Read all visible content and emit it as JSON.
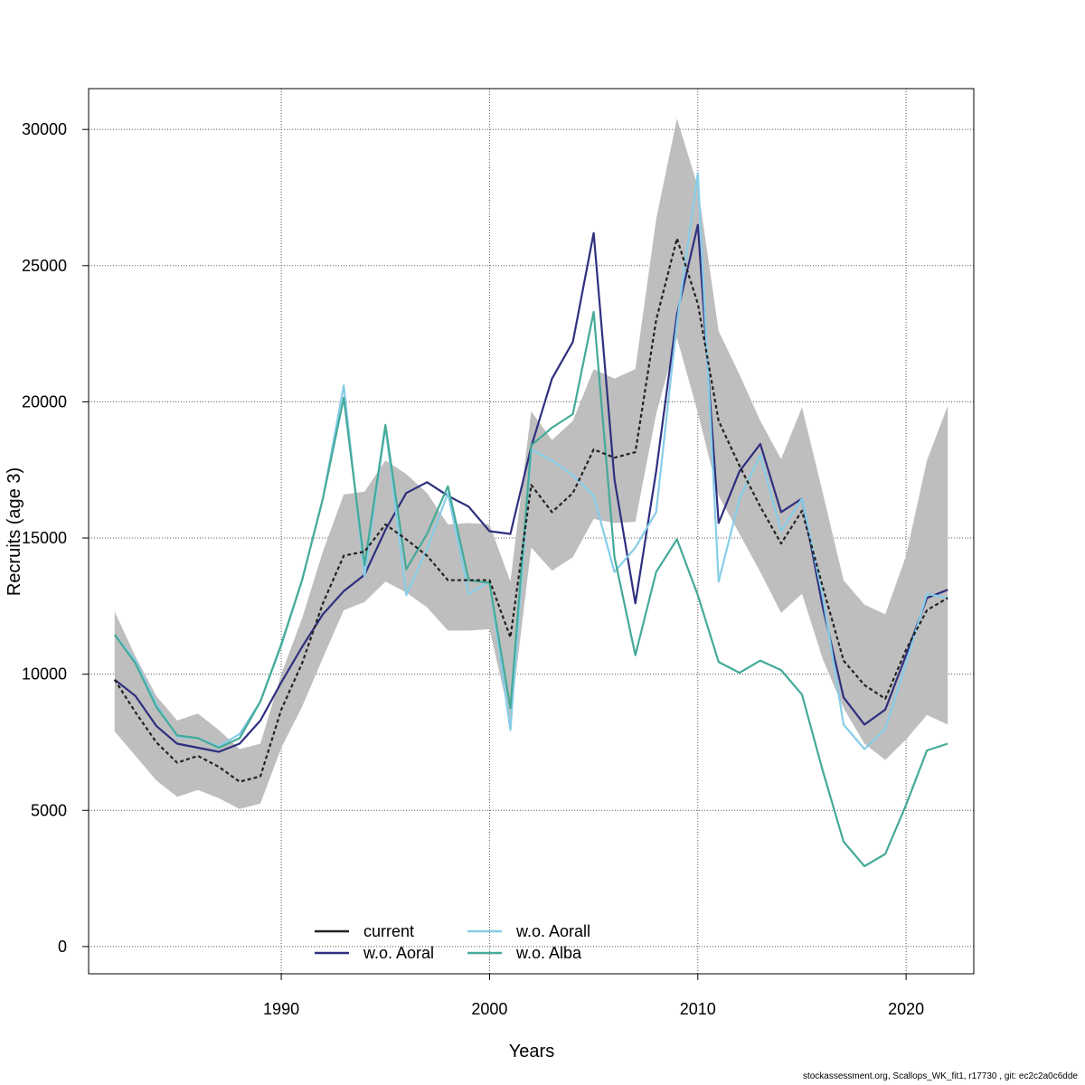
{
  "chart_data": {
    "type": "line",
    "xlabel": "Years",
    "ylabel": "Recruits (age 3)",
    "xlim": [
      1982,
      2022
    ],
    "ylim": [
      -1000,
      31500
    ],
    "x_ticks": [
      1990,
      2000,
      2010,
      2020
    ],
    "y_ticks": [
      0,
      5000,
      10000,
      15000,
      20000,
      25000,
      30000
    ],
    "grid": true,
    "legend_position": "bottom-center",
    "years": [
      1982,
      1983,
      1984,
      1985,
      1986,
      1987,
      1988,
      1989,
      1990,
      1991,
      1992,
      1993,
      1994,
      1995,
      1996,
      1997,
      1998,
      1999,
      2000,
      2001,
      2002,
      2003,
      2004,
      2005,
      2006,
      2007,
      2008,
      2009,
      2010,
      2011,
      2012,
      2013,
      2014,
      2015,
      2016,
      2017,
      2018,
      2019,
      2020,
      2021,
      2022
    ],
    "confidence_band": {
      "lower": [
        7900,
        7000,
        6100,
        5500,
        5750,
        5450,
        5050,
        5250,
        7300,
        8800,
        10600,
        12350,
        12650,
        13400,
        13000,
        12450,
        11600,
        11600,
        11650,
        8300,
        14650,
        13800,
        14300,
        15700,
        15550,
        15600,
        19550,
        22350,
        19600,
        16550,
        15150,
        13750,
        12250,
        12950,
        10550,
        8750,
        7450,
        6850,
        7600,
        8500,
        8150
      ],
      "upper": [
        12300,
        10650,
        9200,
        8300,
        8550,
        7950,
        7250,
        7450,
        10000,
        12050,
        14500,
        16600,
        16700,
        17850,
        17350,
        16650,
        15500,
        15550,
        15500,
        13400,
        19650,
        18600,
        19300,
        21200,
        20850,
        21200,
        26700,
        30400,
        27900,
        22600,
        21000,
        19300,
        17900,
        19800,
        16650,
        13450,
        12550,
        12200,
        14350,
        17850,
        19850
      ]
    },
    "series": [
      {
        "name": "current",
        "color": "#222222",
        "values": [
          9800,
          8600,
          7500,
          6750,
          7000,
          6600,
          6050,
          6250,
          8700,
          10400,
          12600,
          14350,
          14500,
          15500,
          14950,
          14350,
          13450,
          13450,
          13450,
          11350,
          16950,
          15950,
          16650,
          18250,
          17950,
          18150,
          23000,
          26000,
          23600,
          19300,
          17650,
          16150,
          14800,
          16000,
          13200,
          10500,
          9600,
          9100,
          10900,
          12350,
          12800
        ]
      },
      {
        "name": "w.o. Aoral",
        "color": "#2f2f7f",
        "values": [
          9800,
          9200,
          8100,
          7450,
          7300,
          7150,
          7450,
          8300,
          9700,
          11000,
          12200,
          13050,
          13650,
          15300,
          16650,
          17050,
          16550,
          16150,
          15250,
          15150,
          18350,
          20850,
          22200,
          26200,
          17150,
          12600,
          17450,
          23200,
          26500,
          15550,
          17450,
          18450,
          15950,
          16450,
          12450,
          9150,
          8150,
          8700,
          10700,
          12800,
          13100
        ]
      },
      {
        "name": "w.o. Aorall",
        "color": "#87cde8",
        "values": [
          11450,
          10500,
          8900,
          7700,
          7650,
          7350,
          7800,
          9000,
          11050,
          13450,
          16450,
          20600,
          13600,
          19100,
          12900,
          14600,
          16650,
          12950,
          13400,
          7950,
          18250,
          17850,
          17300,
          16550,
          13750,
          14650,
          15950,
          22900,
          28400,
          13400,
          16450,
          18050,
          15250,
          16450,
          12850,
          8150,
          7250,
          8000,
          10400,
          12950,
          12800
        ]
      },
      {
        "name": "w.o. Alba",
        "color": "#44aa99",
        "values": [
          11450,
          10400,
          8800,
          7750,
          7650,
          7300,
          7650,
          9000,
          11100,
          13450,
          16450,
          20150,
          14000,
          19150,
          13850,
          15150,
          16900,
          13450,
          13350,
          8750,
          18400,
          19050,
          19550,
          23300,
          14300,
          10700,
          13750,
          14950,
          12900,
          10450,
          10050,
          10500,
          10150,
          9250,
          6450,
          3850,
          2950,
          3400,
          5200,
          7200,
          7450
        ]
      }
    ]
  },
  "legend": {
    "items": [
      {
        "label": "current",
        "color": "#222222"
      },
      {
        "label": "w.o. Aoral",
        "color": "#2f2f7f"
      },
      {
        "label": "w.o. Aorall",
        "color": "#87cde8"
      },
      {
        "label": "w.o. Alba",
        "color": "#44aa99"
      }
    ]
  },
  "footer": "stockassessment.org, Scallops_WK_fit1, r17730 , git: ec2c2a0c6dde"
}
